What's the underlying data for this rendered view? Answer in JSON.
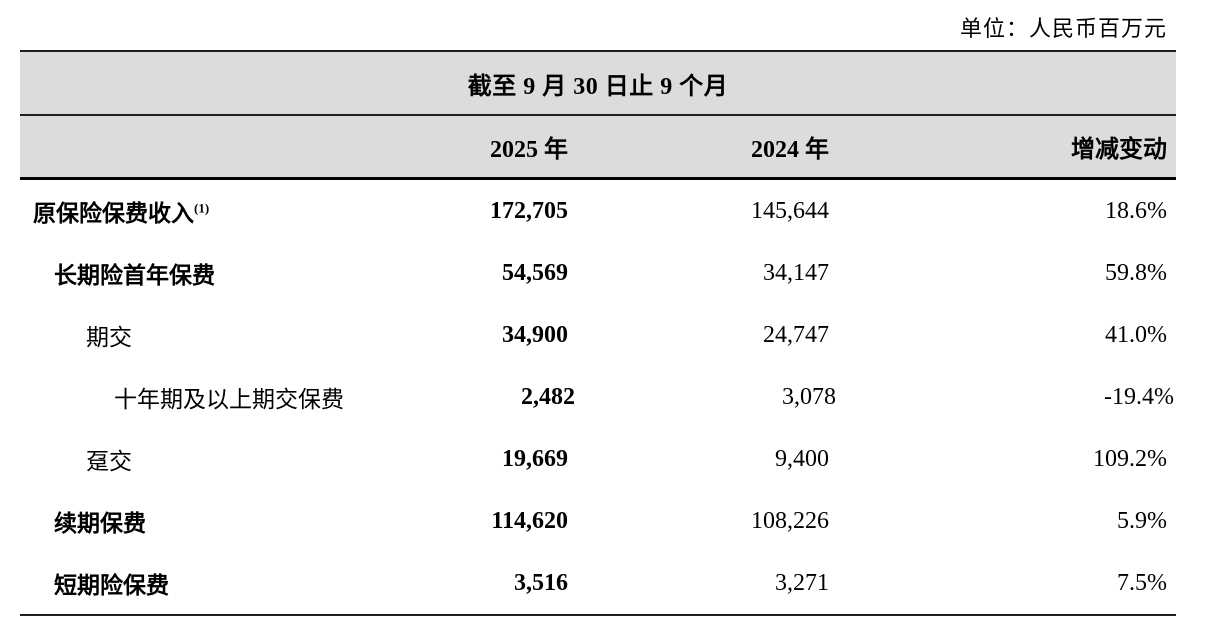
{
  "unit_note": "单位：人民币百万元",
  "table": {
    "period_header": "截至 9 月 30 日止 9 个月",
    "columns": [
      "2025 年",
      "2024 年",
      "增减变动"
    ],
    "rows": [
      {
        "label": "原保险保费收入",
        "sup": "(1)",
        "indent": 0,
        "bold_label": true,
        "v2025": "172,705",
        "v2024": "145,644",
        "change": "18.6%"
      },
      {
        "label": "长期险首年保费",
        "sup": "",
        "indent": 1,
        "bold_label": true,
        "v2025": "54,569",
        "v2024": "34,147",
        "change": "59.8%"
      },
      {
        "label": "期交",
        "sup": "",
        "indent": 2,
        "bold_label": false,
        "v2025": "34,900",
        "v2024": "24,747",
        "change": "41.0%"
      },
      {
        "label": "十年期及以上期交保费",
        "sup": "",
        "indent": 3,
        "bold_label": false,
        "v2025": "2,482",
        "v2024": "3,078",
        "change": "-19.4%"
      },
      {
        "label": "趸交",
        "sup": "",
        "indent": 2,
        "bold_label": false,
        "v2025": "19,669",
        "v2024": "9,400",
        "change": "109.2%"
      },
      {
        "label": "续期保费",
        "sup": "",
        "indent": 1,
        "bold_label": true,
        "v2025": "114,620",
        "v2024": "108,226",
        "change": "5.9%"
      },
      {
        "label": "短期险保费",
        "sup": "",
        "indent": 1,
        "bold_label": true,
        "v2025": "3,516",
        "v2024": "3,271",
        "change": "7.5%"
      }
    ]
  }
}
